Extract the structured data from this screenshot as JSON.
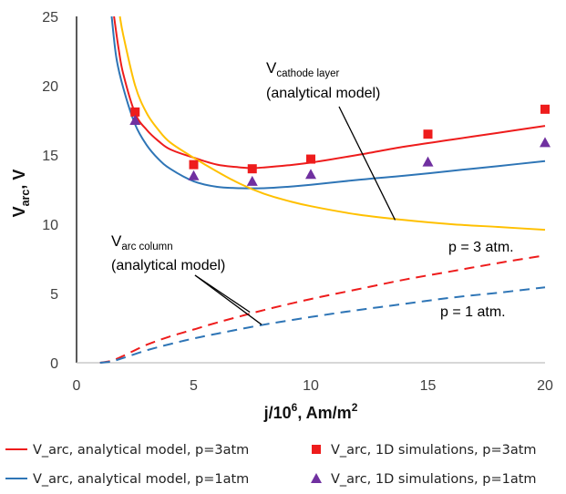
{
  "chart_data": {
    "type": "line",
    "xlabel": {
      "main": "j/10",
      "sup": "6",
      "tail": ", Am/m",
      "sup2": "2"
    },
    "ylabel": {
      "main": "V",
      "sub": "arc",
      "tail": ", V"
    },
    "xlim": [
      0,
      20
    ],
    "ylim": [
      0,
      25
    ],
    "xticks": [
      "0",
      "5",
      "10",
      "15",
      "20"
    ],
    "yticks": [
      "0",
      "5",
      "10",
      "15",
      "20",
      "25"
    ],
    "grid": false,
    "legend_position": "bottom",
    "series": [
      {
        "name": "V_arc, analytical model, p=3atm",
        "kind": "line",
        "style": "solid",
        "color": "#ee1c1c",
        "x": [
          1.6,
          1.8,
          2.0,
          2.5,
          3.0,
          3.5,
          4.0,
          5.0,
          6.0,
          7.0,
          7.5,
          8.0,
          9.0,
          10.0,
          12.0,
          14.0,
          16.0,
          18.0,
          20.0
        ],
        "y": [
          25.0,
          22.6,
          20.8,
          18.0,
          16.8,
          16.0,
          15.4,
          14.8,
          14.3,
          14.1,
          14.05,
          14.1,
          14.25,
          14.45,
          15.0,
          15.6,
          16.1,
          16.6,
          17.1
        ]
      },
      {
        "name": "V_arc, analytical model, p=1atm",
        "kind": "line",
        "style": "solid",
        "color": "#2e75b6",
        "x": [
          1.5,
          1.7,
          2.0,
          2.5,
          3.0,
          3.5,
          4.0,
          5.0,
          6.0,
          7.0,
          8.0,
          9.0,
          10.0,
          12.0,
          14.0,
          16.0,
          18.0,
          20.0
        ],
        "y": [
          25.0,
          22.0,
          19.8,
          17.2,
          15.7,
          14.7,
          14.0,
          13.1,
          12.7,
          12.6,
          12.6,
          12.7,
          12.85,
          13.2,
          13.5,
          13.85,
          14.2,
          14.55
        ]
      },
      {
        "name": "V_arc, 1D simulations, p=3atm",
        "kind": "scatter",
        "marker": "square",
        "color": "#ee1c1c",
        "x": [
          2.5,
          5.0,
          7.5,
          10.0,
          15.0,
          20.0
        ],
        "y": [
          18.1,
          14.3,
          14.0,
          14.7,
          16.5,
          18.3
        ]
      },
      {
        "name": "V_arc, 1D simulations, p=1atm",
        "kind": "scatter",
        "marker": "triangle",
        "color": "#7030a0",
        "x": [
          2.5,
          5.0,
          7.5,
          10.0,
          15.0,
          20.0
        ],
        "y": [
          17.5,
          13.5,
          13.1,
          13.6,
          14.5,
          15.9
        ]
      },
      {
        "name": "",
        "kind": "line",
        "style": "solid",
        "color": "#ffc000",
        "x": [
          1.85,
          2.0,
          2.5,
          3.0,
          3.5,
          4.0,
          5.0,
          6.0,
          7.0,
          8.0,
          9.0,
          10.0,
          12.0,
          14.0,
          16.0,
          18.0,
          20.0
        ],
        "y": [
          25.0,
          23.6,
          20.0,
          18.0,
          16.8,
          15.9,
          14.8,
          13.8,
          12.9,
          12.2,
          11.7,
          11.3,
          10.7,
          10.3,
          10.0,
          9.8,
          9.6
        ]
      },
      {
        "name": "",
        "kind": "line",
        "style": "dashed",
        "color": "#ee1c1c",
        "x": [
          1.0,
          1.5,
          2.0,
          3.0,
          4.0,
          5.0,
          6.0,
          8.0,
          10.0,
          12.0,
          14.0,
          16.0,
          18.0,
          20.0
        ],
        "y": [
          0.0,
          0.15,
          0.5,
          1.3,
          1.9,
          2.4,
          2.9,
          3.8,
          4.6,
          5.3,
          6.0,
          6.6,
          7.2,
          7.75
        ]
      },
      {
        "name": "",
        "kind": "line",
        "style": "dashed",
        "color": "#2e75b6",
        "x": [
          1.0,
          1.5,
          2.0,
          3.0,
          4.0,
          5.0,
          6.0,
          8.0,
          10.0,
          12.0,
          14.0,
          16.0,
          18.0,
          20.0
        ],
        "y": [
          0.0,
          0.1,
          0.35,
          0.9,
          1.35,
          1.75,
          2.1,
          2.75,
          3.3,
          3.8,
          4.25,
          4.7,
          5.05,
          5.45
        ]
      }
    ],
    "annotations": {
      "cathode": {
        "main": "V",
        "sub": "cathode layer",
        "line2": "(analytical model)",
        "target": [
          13.6,
          10.3
        ]
      },
      "column": {
        "main": "V",
        "sub": "arc column",
        "line2": "(analytical model)",
        "targets": [
          [
            7.4,
            3.65
          ],
          [
            7.9,
            2.75
          ]
        ]
      },
      "p3": {
        "text": "p = 3 atm."
      },
      "p1": {
        "text": "p = 1 atm."
      }
    }
  }
}
